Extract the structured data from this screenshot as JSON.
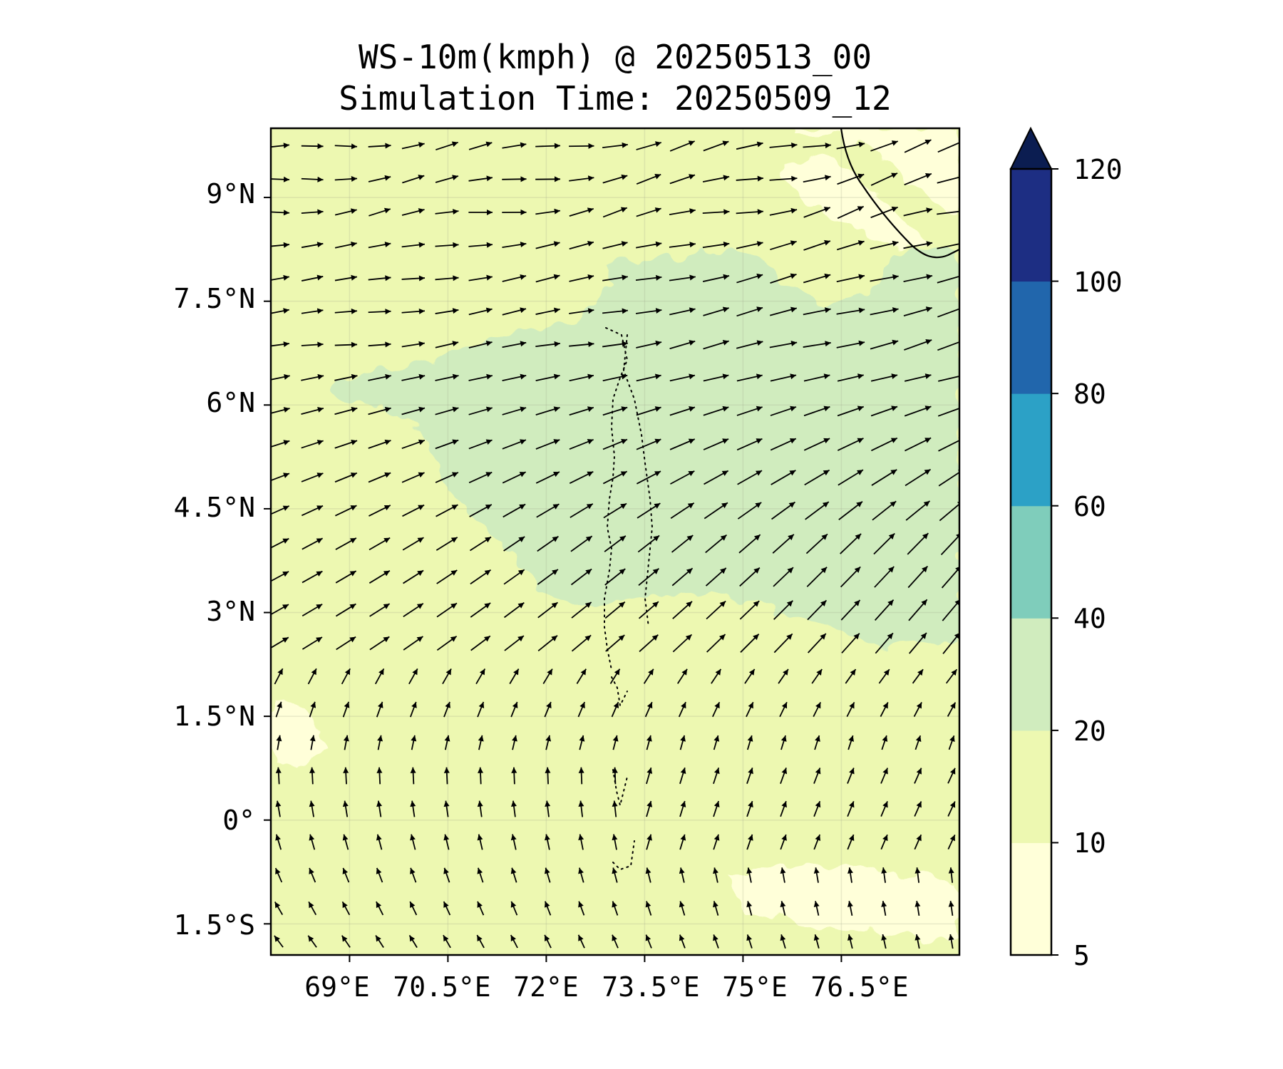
{
  "title": {
    "line1": "WS-10m(kmph) @ 20250513_00",
    "line2": "Simulation Time: 20250509_12"
  },
  "map": {
    "lon_range": [
      67.8,
      78.3
    ],
    "lat_range": [
      -1.95,
      10.0
    ],
    "lon_ticks": [
      {
        "value": 69,
        "label": "69°E"
      },
      {
        "value": 70.5,
        "label": "70.5°E"
      },
      {
        "value": 72,
        "label": "72°E"
      },
      {
        "value": 73.5,
        "label": "73.5°E"
      },
      {
        "value": 75,
        "label": "75°E"
      },
      {
        "value": 76.5,
        "label": "76.5°E"
      }
    ],
    "lat_ticks": [
      {
        "value": 9,
        "label": "9°N"
      },
      {
        "value": 7.5,
        "label": "7.5°N"
      },
      {
        "value": 6,
        "label": "6°N"
      },
      {
        "value": 4.5,
        "label": "4.5°N"
      },
      {
        "value": 3,
        "label": "3°N"
      },
      {
        "value": 1.5,
        "label": "1.5°N"
      },
      {
        "value": 0,
        "label": "0°"
      },
      {
        "value": -1.5,
        "label": "1.5°S"
      }
    ],
    "gridlines": true
  },
  "colorbar": {
    "levels": [
      {
        "value": 5,
        "label": "5"
      },
      {
        "value": 10,
        "label": "10"
      },
      {
        "value": 20,
        "label": "20"
      },
      {
        "value": 40,
        "label": "40"
      },
      {
        "value": 60,
        "label": "60"
      },
      {
        "value": 80,
        "label": "80"
      },
      {
        "value": 100,
        "label": "100"
      },
      {
        "value": 120,
        "label": "120"
      }
    ],
    "colors": [
      "#ffffd9",
      "#edf8b1",
      "#d0ecbe",
      "#7fcdbb",
      "#2ca1c6",
      "#2166ac",
      "#1d2e83",
      "#0b1d51"
    ],
    "extend": "max"
  },
  "chart_data": {
    "type": "heatmap",
    "variable": "WS-10m(kmph)",
    "valid_time": "20250513_00",
    "simulation_time": "20250509_12",
    "x": "longitude",
    "y": "latitude",
    "value_range_kmph": [
      5,
      30
    ],
    "fill_zones": [
      {
        "range_kmph": "20-40",
        "color": "#d0ecbe",
        "region": "band from 70°E to 78°E, 2.5°N to 8°N"
      },
      {
        "range_kmph": "10-20",
        "color": "#edf8b1",
        "region": "most of domain"
      },
      {
        "range_kmph": "5-10",
        "color": "#ffffd9",
        "region": "patches near 9°N 75-77°E, 1°N 68°E, 1.5°S 75-77°E"
      }
    ],
    "wind_vectors": "quiver field: westerly north of 6°N, south-westerly 2°N-6°N, southerly/south-south-easterly south of 1°N"
  }
}
